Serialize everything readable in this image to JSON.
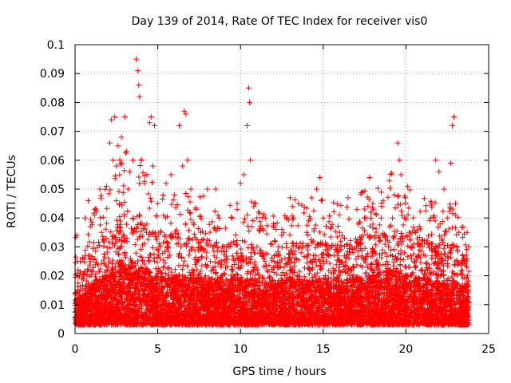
{
  "chart_data": {
    "type": "scatter",
    "title": "Day 139 of 2014, Rate Of TEC Index for receiver vis0",
    "xlabel": "GPS time / hours",
    "ylabel": "ROTI / TECUs",
    "xlim": [
      0,
      25
    ],
    "ylim": [
      0,
      0.1
    ],
    "xticks": [
      0,
      5,
      10,
      15,
      20,
      25
    ],
    "xtick_labels": [
      "0",
      "5",
      "10",
      "15",
      "20",
      "25"
    ],
    "yticks": [
      0,
      0.01,
      0.02,
      0.03,
      0.04,
      0.05,
      0.06,
      0.07,
      0.08,
      0.09,
      0.1
    ],
    "ytick_labels": [
      "0",
      "0.01",
      "0.02",
      "0.03",
      "0.04",
      "0.05",
      "0.06",
      "0.07",
      "0.08",
      "0.09",
      "0.1"
    ],
    "grid": true,
    "marker": "+",
    "color": "#ff0000",
    "series": [
      {
        "name": "ROTI",
        "x": [
          0.1,
          0.15,
          0.2,
          0.3,
          0.5,
          0.6,
          0.8,
          1.0,
          1.2,
          1.5,
          1.6,
          1.9,
          2.1,
          2.2,
          2.3,
          2.4,
          2.5,
          2.6,
          2.7,
          2.8,
          3.0,
          3.2,
          3.3,
          3.5,
          3.7,
          3.8,
          3.85,
          3.9,
          4.0,
          4.2,
          4.5,
          4.6,
          4.7,
          4.8,
          5.0,
          5.2,
          5.5,
          5.8,
          6.0,
          6.3,
          6.5,
          6.6,
          6.7,
          6.8,
          7.0,
          7.3,
          7.6,
          8.0,
          8.5,
          8.7,
          9.0,
          9.5,
          9.8,
          10.0,
          10.2,
          10.4,
          10.5,
          10.55,
          10.6,
          10.8,
          11.0,
          11.5,
          12.0,
          12.5,
          13.0,
          13.2,
          13.5,
          14.0,
          14.3,
          14.6,
          14.8,
          15.0,
          15.5,
          16.0,
          16.5,
          16.7,
          17.0,
          17.5,
          17.8,
          18.0,
          18.5,
          19.0,
          19.3,
          19.5,
          19.6,
          19.7,
          19.9,
          20.2,
          20.5,
          20.8,
          21.0,
          21.5,
          21.8,
          22.0,
          22.3,
          22.5,
          22.7,
          22.8,
          22.9,
          23.0,
          23.2,
          23.5,
          23.7,
          23.8
        ],
        "y": [
          0.034,
          0.025,
          0.012,
          0.01,
          0.008,
          0.04,
          0.046,
          0.015,
          0.043,
          0.05,
          0.035,
          0.051,
          0.066,
          0.074,
          0.06,
          0.075,
          0.058,
          0.065,
          0.045,
          0.068,
          0.075,
          0.05,
          0.056,
          0.06,
          0.095,
          0.091,
          0.086,
          0.082,
          0.06,
          0.052,
          0.073,
          0.075,
          0.058,
          0.072,
          0.045,
          0.035,
          0.052,
          0.055,
          0.048,
          0.072,
          0.058,
          0.077,
          0.076,
          0.06,
          0.05,
          0.043,
          0.035,
          0.05,
          0.05,
          0.04,
          0.03,
          0.04,
          0.045,
          0.052,
          0.055,
          0.072,
          0.085,
          0.08,
          0.06,
          0.044,
          0.03,
          0.04,
          0.038,
          0.036,
          0.047,
          0.04,
          0.045,
          0.035,
          0.047,
          0.05,
          0.054,
          0.04,
          0.03,
          0.035,
          0.047,
          0.03,
          0.03,
          0.04,
          0.054,
          0.045,
          0.04,
          0.053,
          0.048,
          0.066,
          0.06,
          0.055,
          0.04,
          0.035,
          0.025,
          0.03,
          0.03,
          0.04,
          0.06,
          0.056,
          0.05,
          0.04,
          0.059,
          0.072,
          0.075,
          0.045,
          0.035,
          0.025,
          0.035,
          0.03
        ]
      }
    ],
    "density_profile": {
      "x_knots": [
        0,
        0.5,
        1,
        2,
        3,
        4,
        5,
        6,
        7,
        8,
        9,
        10,
        11,
        12,
        13,
        14,
        15,
        16,
        17,
        18,
        19,
        20,
        21,
        22,
        23,
        23.8
      ],
      "typical_upper": [
        0.022,
        0.018,
        0.028,
        0.032,
        0.04,
        0.038,
        0.03,
        0.032,
        0.03,
        0.03,
        0.028,
        0.03,
        0.028,
        0.026,
        0.03,
        0.028,
        0.03,
        0.028,
        0.03,
        0.032,
        0.035,
        0.033,
        0.03,
        0.028,
        0.028,
        0.025
      ],
      "baseline": 0.003,
      "points_per_hour": 360
    }
  }
}
